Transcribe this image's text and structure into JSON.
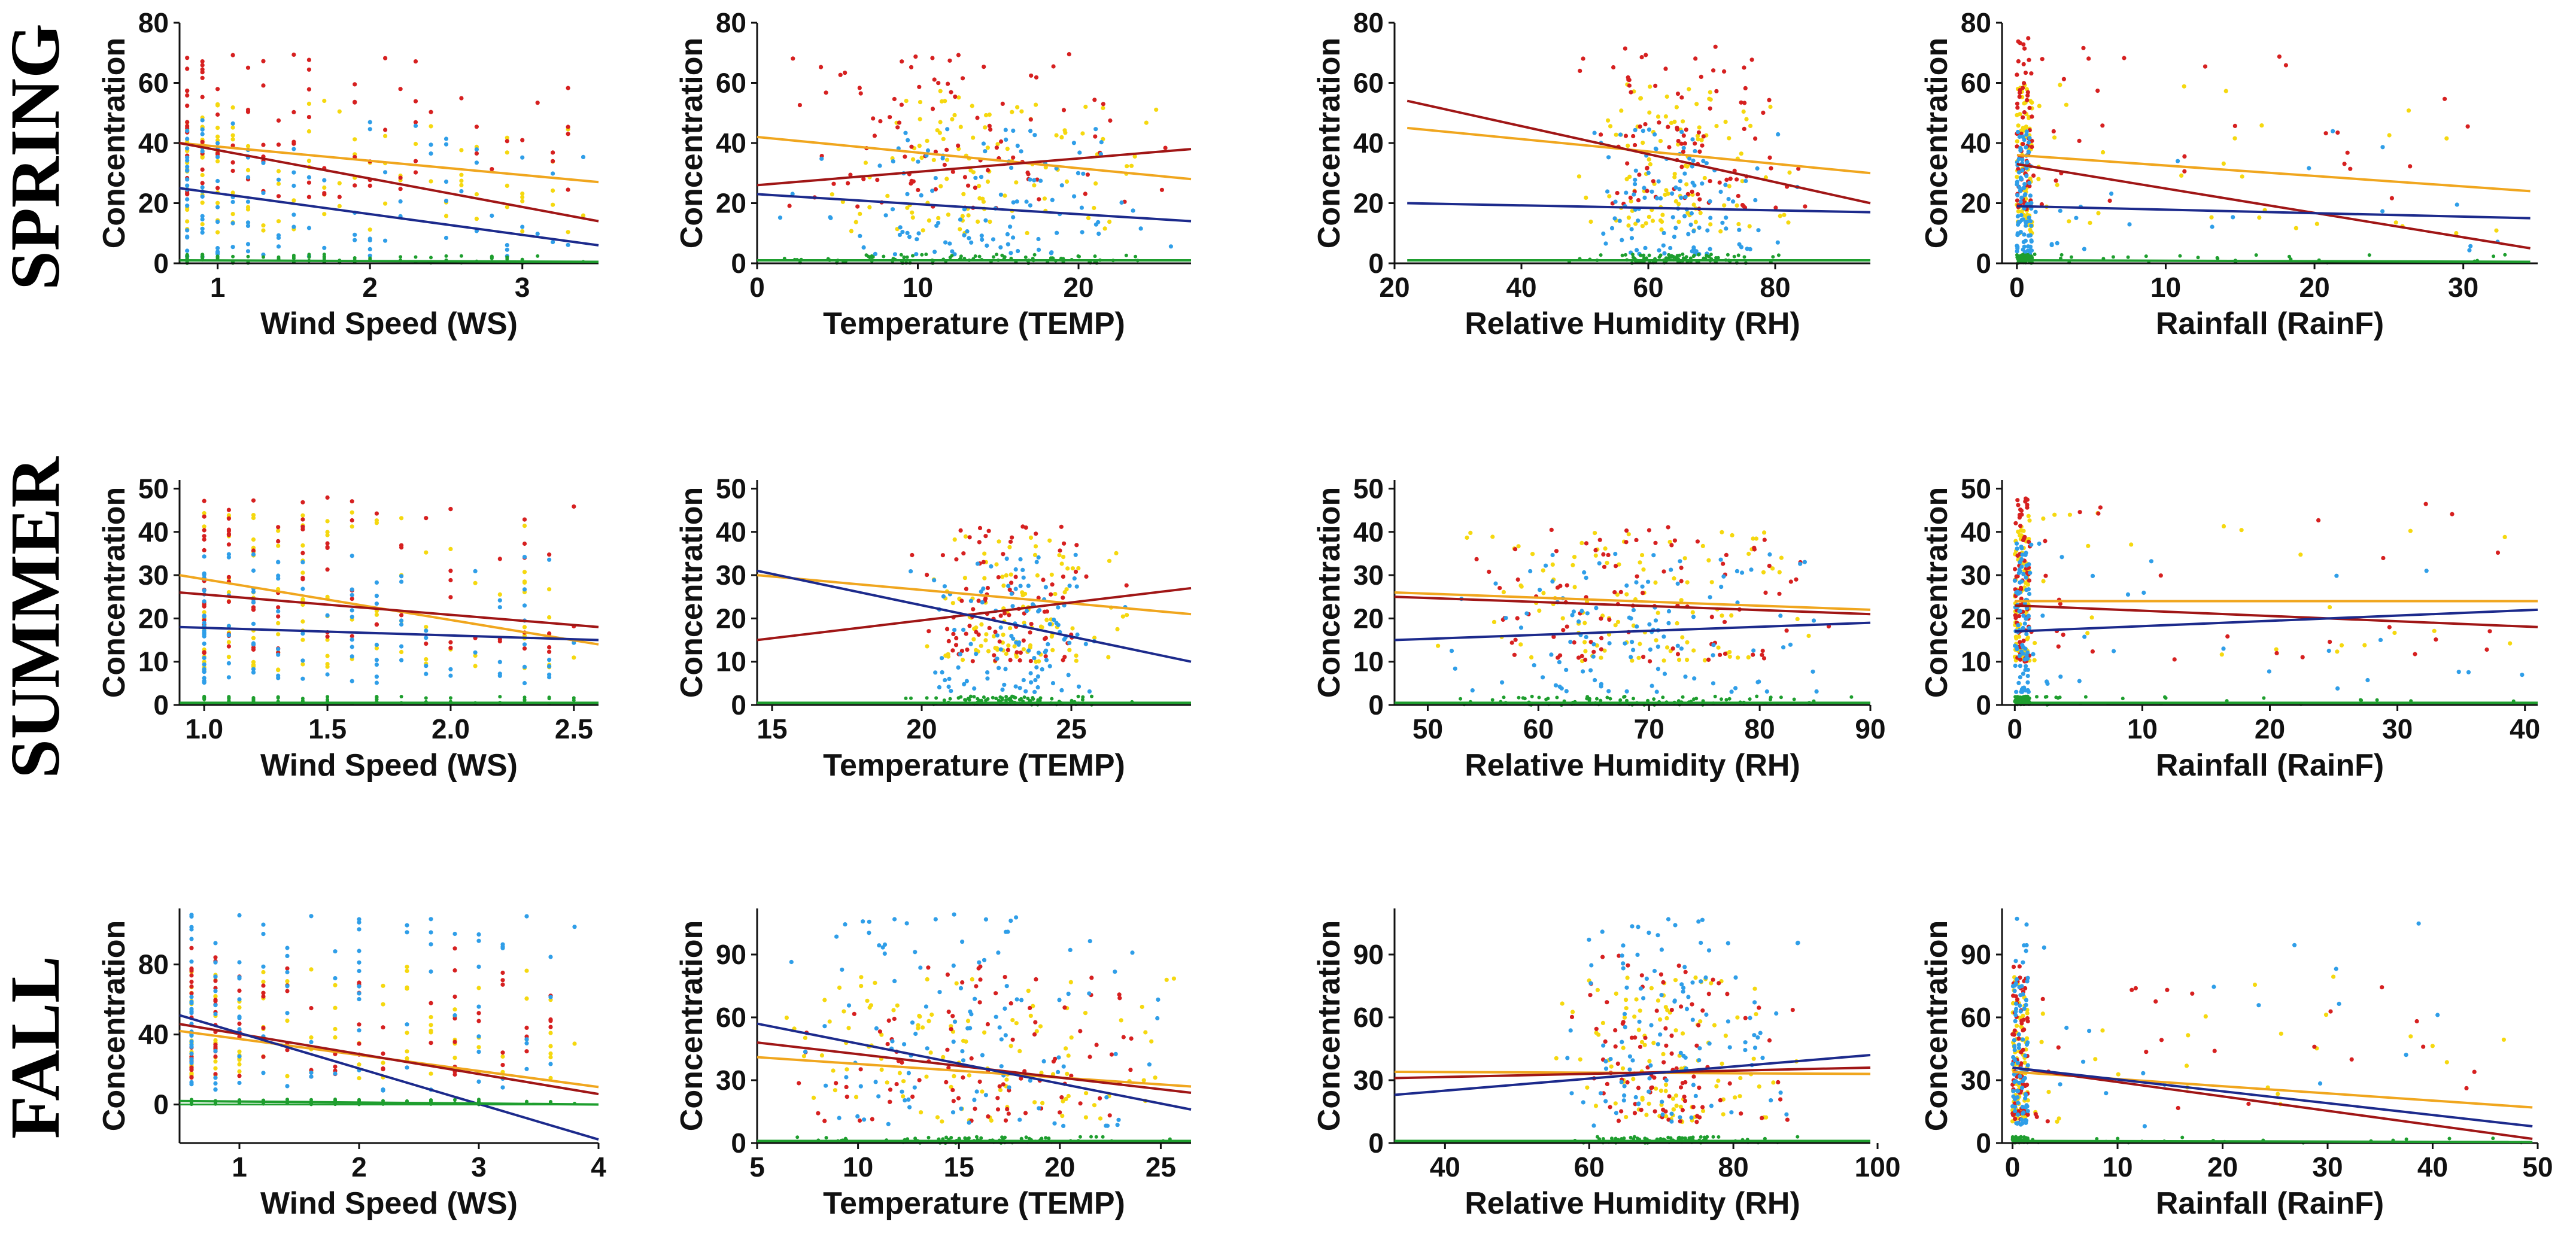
{
  "figure": {
    "colors": {
      "red": "#d62020",
      "orange": "#f0a61e",
      "yellow": "#f5d80f",
      "light_blue": "#2f9ee8",
      "navy": "#1c2a8c",
      "green": "#1e9e2e",
      "dark_red": "#a01616"
    },
    "season_labels": [
      "SPRING",
      "SUMMER",
      "FALL"
    ]
  },
  "chart_data": [
    {
      "type": "scatter",
      "season": "SPRING",
      "title": "",
      "xlabel": "Wind Speed (WS)",
      "ylabel": "Concentration",
      "xlim": [
        0.75,
        3.5
      ],
      "ylim": [
        0,
        80
      ],
      "xticks": [
        1,
        2,
        3
      ],
      "yticks": [
        0,
        20,
        40,
        60,
        80
      ],
      "x_pattern": "discrete",
      "x_range": [
        0.8,
        3.4
      ],
      "skew": -1,
      "spread": [
        [
          10,
          55
        ],
        [
          22,
          70
        ],
        [
          2,
          48
        ],
        [
          0,
          3
        ]
      ],
      "trend_lines": [
        {
          "series": "orange",
          "x": [
            0.75,
            3.5
          ],
          "y": [
            40,
            27
          ]
        },
        {
          "series": "dark_red",
          "x": [
            0.75,
            3.5
          ],
          "y": [
            40,
            14
          ]
        },
        {
          "series": "navy",
          "x": [
            0.75,
            3.5
          ],
          "y": [
            25,
            6
          ]
        },
        {
          "series": "green",
          "x": [
            0.75,
            3.5
          ],
          "y": [
            1,
            0.5
          ]
        }
      ]
    },
    {
      "type": "scatter",
      "season": "SPRING",
      "title": "",
      "xlabel": "Temperature (TEMP)",
      "ylabel": "Concentration",
      "xlim": [
        0,
        27
      ],
      "ylim": [
        0,
        80
      ],
      "xticks": [
        0,
        10,
        20
      ],
      "yticks": [
        0,
        20,
        40,
        60,
        80
      ],
      "x_pattern": "central",
      "x_range": [
        1,
        26
      ],
      "skew": 0,
      "spread": [
        [
          10,
          60
        ],
        [
          18,
          70
        ],
        [
          3,
          45
        ],
        [
          0,
          3
        ]
      ],
      "trend_lines": [
        {
          "series": "orange",
          "x": [
            0,
            27
          ],
          "y": [
            42,
            28
          ]
        },
        {
          "series": "dark_red",
          "x": [
            0,
            27
          ],
          "y": [
            26,
            38
          ]
        },
        {
          "series": "navy",
          "x": [
            0,
            27
          ],
          "y": [
            23,
            14
          ]
        },
        {
          "series": "green",
          "x": [
            0,
            27
          ],
          "y": [
            1,
            1
          ]
        }
      ]
    },
    {
      "type": "scatter",
      "season": "SPRING",
      "title": "",
      "xlabel": "Relative Humidity (RH)",
      "ylabel": "Concentration",
      "xlim": [
        20,
        95
      ],
      "ylim": [
        0,
        80
      ],
      "xticks": [
        20,
        40,
        60,
        80
      ],
      "yticks": [
        0,
        20,
        40,
        60,
        80
      ],
      "x_pattern": "high",
      "x_range": [
        25,
        95
      ],
      "skew": 0,
      "spread": [
        [
          10,
          60
        ],
        [
          18,
          72
        ],
        [
          3,
          45
        ],
        [
          0,
          3
        ]
      ],
      "trend_lines": [
        {
          "series": "orange",
          "x": [
            22,
            95
          ],
          "y": [
            45,
            30
          ]
        },
        {
          "series": "dark_red",
          "x": [
            22,
            95
          ],
          "y": [
            54,
            20
          ]
        },
        {
          "series": "navy",
          "x": [
            22,
            95
          ],
          "y": [
            20,
            17
          ]
        },
        {
          "series": "green",
          "x": [
            22,
            95
          ],
          "y": [
            1,
            1
          ]
        }
      ]
    },
    {
      "type": "scatter",
      "season": "SPRING",
      "title": "",
      "xlabel": "Rainfall (RainF)",
      "ylabel": "Concentration",
      "xlim": [
        -1,
        35
      ],
      "ylim": [
        0,
        80
      ],
      "xticks": [
        0,
        10,
        20,
        30
      ],
      "yticks": [
        0,
        20,
        40,
        60,
        80
      ],
      "x_pattern": "near_zero",
      "x_range": [
        0,
        34
      ],
      "skew": 0,
      "spread": [
        [
          10,
          60
        ],
        [
          18,
          75
        ],
        [
          3,
          45
        ],
        [
          0,
          3
        ]
      ],
      "trend_lines": [
        {
          "series": "orange",
          "x": [
            0,
            34.5
          ],
          "y": [
            36,
            24
          ]
        },
        {
          "series": "dark_red",
          "x": [
            0,
            34.5
          ],
          "y": [
            33,
            5
          ]
        },
        {
          "series": "navy",
          "x": [
            0,
            34.5
          ],
          "y": [
            19,
            15
          ]
        },
        {
          "series": "green",
          "x": [
            0,
            34.5
          ],
          "y": [
            1,
            0.5
          ]
        }
      ]
    },
    {
      "type": "scatter",
      "season": "SUMMER",
      "title": "",
      "xlabel": "Wind Speed (WS)",
      "ylabel": "Concentration",
      "xlim": [
        0.9,
        2.6
      ],
      "ylim": [
        0,
        52
      ],
      "xticks": [
        1.0,
        1.5,
        2.0,
        2.5
      ],
      "xtick_decimals": 1,
      "yticks": [
        0,
        10,
        20,
        30,
        40,
        50
      ],
      "x_pattern": "discrete",
      "x_range": [
        1.0,
        2.5
      ],
      "skew": -1,
      "spread": [
        [
          8,
          45
        ],
        [
          12,
          48
        ],
        [
          5,
          35
        ],
        [
          0,
          2
        ]
      ],
      "trend_lines": [
        {
          "series": "orange",
          "x": [
            0.9,
            2.6
          ],
          "y": [
            30,
            14
          ]
        },
        {
          "series": "dark_red",
          "x": [
            0.9,
            2.6
          ],
          "y": [
            26,
            18
          ]
        },
        {
          "series": "navy",
          "x": [
            0.9,
            2.6
          ],
          "y": [
            18,
            15
          ]
        },
        {
          "series": "green",
          "x": [
            0.9,
            2.6
          ],
          "y": [
            0.5,
            0.5
          ]
        }
      ]
    },
    {
      "type": "scatter",
      "season": "SUMMER",
      "title": "",
      "xlabel": "Temperature (TEMP)",
      "ylabel": "Concentration",
      "xlim": [
        14.5,
        29
      ],
      "ylim": [
        0,
        52
      ],
      "xticks": [
        15,
        20,
        25
      ],
      "yticks": [
        0,
        10,
        20,
        30,
        40,
        50
      ],
      "x_pattern": "high",
      "x_range": [
        15,
        29
      ],
      "skew": 0,
      "spread": [
        [
          10,
          40
        ],
        [
          10,
          42
        ],
        [
          3,
          35
        ],
        [
          0,
          2
        ]
      ],
      "trend_lines": [
        {
          "series": "orange",
          "x": [
            14.5,
            29
          ],
          "y": [
            30,
            21
          ]
        },
        {
          "series": "dark_red",
          "x": [
            14.5,
            29
          ],
          "y": [
            15,
            27
          ]
        },
        {
          "series": "navy",
          "x": [
            14.5,
            29
          ],
          "y": [
            31,
            10
          ]
        },
        {
          "series": "green",
          "x": [
            14.5,
            29
          ],
          "y": [
            0.5,
            0.5
          ]
        }
      ]
    },
    {
      "type": "scatter",
      "season": "SUMMER",
      "title": "",
      "xlabel": "Relative Humidity (RH)",
      "ylabel": "Concentration",
      "xlim": [
        47,
        90
      ],
      "ylim": [
        0,
        52
      ],
      "xticks": [
        50,
        60,
        70,
        80,
        90
      ],
      "yticks": [
        0,
        10,
        20,
        30,
        40,
        50
      ],
      "x_pattern": "central",
      "x_range": [
        50,
        89
      ],
      "skew": 0,
      "spread": [
        [
          10,
          40
        ],
        [
          10,
          42
        ],
        [
          3,
          35
        ],
        [
          0,
          2
        ]
      ],
      "trend_lines": [
        {
          "series": "orange",
          "x": [
            47,
            90
          ],
          "y": [
            26,
            22
          ]
        },
        {
          "series": "dark_red",
          "x": [
            47,
            90
          ],
          "y": [
            25,
            21
          ]
        },
        {
          "series": "navy",
          "x": [
            47,
            90
          ],
          "y": [
            15,
            19
          ]
        },
        {
          "series": "green",
          "x": [
            47,
            90
          ],
          "y": [
            0.5,
            0.5
          ]
        }
      ]
    },
    {
      "type": "scatter",
      "season": "SUMMER",
      "title": "",
      "xlabel": "Rainfall (RainF)",
      "ylabel": "Concentration",
      "xlim": [
        -1,
        41
      ],
      "ylim": [
        0,
        52
      ],
      "xticks": [
        0,
        10,
        20,
        30,
        40
      ],
      "yticks": [
        0,
        10,
        20,
        30,
        40,
        50
      ],
      "x_pattern": "near_zero",
      "x_range": [
        0,
        40
      ],
      "skew": 0,
      "spread": [
        [
          10,
          45
        ],
        [
          10,
          48
        ],
        [
          3,
          38
        ],
        [
          0,
          2
        ]
      ],
      "trend_lines": [
        {
          "series": "orange",
          "x": [
            0,
            41
          ],
          "y": [
            24,
            24
          ]
        },
        {
          "series": "dark_red",
          "x": [
            0,
            41
          ],
          "y": [
            23,
            18
          ]
        },
        {
          "series": "navy",
          "x": [
            0,
            41
          ],
          "y": [
            17,
            22
          ]
        },
        {
          "series": "green",
          "x": [
            0,
            41
          ],
          "y": [
            0.5,
            0.5
          ]
        }
      ]
    },
    {
      "type": "scatter",
      "season": "FALL",
      "title": "",
      "xlabel": "Wind Speed (WS)",
      "ylabel": "Concentration",
      "xlim": [
        0.5,
        4
      ],
      "ylim": [
        -22,
        112
      ],
      "xticks": [
        1,
        2,
        3,
        4
      ],
      "yticks": [
        0,
        40,
        80
      ],
      "x_pattern": "discrete",
      "x_range": [
        0.6,
        3.8
      ],
      "skew": -1,
      "spread": [
        [
          15,
          80
        ],
        [
          15,
          90
        ],
        [
          8,
          110
        ],
        [
          0,
          3
        ]
      ],
      "trend_lines": [
        {
          "series": "orange",
          "x": [
            0.5,
            4
          ],
          "y": [
            42,
            10
          ]
        },
        {
          "series": "dark_red",
          "x": [
            0.5,
            4
          ],
          "y": [
            46,
            6
          ]
        },
        {
          "series": "navy",
          "x": [
            0.5,
            4
          ],
          "y": [
            51,
            -20
          ]
        },
        {
          "series": "green",
          "x": [
            0.5,
            4
          ],
          "y": [
            2,
            0
          ]
        }
      ]
    },
    {
      "type": "scatter",
      "season": "FALL",
      "title": "",
      "xlabel": "Temperature (TEMP)",
      "ylabel": "Concentration",
      "xlim": [
        5,
        26.5
      ],
      "ylim": [
        0,
        112
      ],
      "xticks": [
        5,
        10,
        15,
        20,
        25
      ],
      "yticks": [
        0,
        30,
        60,
        90
      ],
      "x_pattern": "central",
      "x_range": [
        6,
        26
      ],
      "skew": 0,
      "spread": [
        [
          10,
          80
        ],
        [
          10,
          85
        ],
        [
          8,
          110
        ],
        [
          0,
          3
        ]
      ],
      "trend_lines": [
        {
          "series": "orange",
          "x": [
            5,
            26.5
          ],
          "y": [
            41,
            27
          ]
        },
        {
          "series": "dark_red",
          "x": [
            5,
            26.5
          ],
          "y": [
            48,
            24
          ]
        },
        {
          "series": "navy",
          "x": [
            5,
            26.5
          ],
          "y": [
            57,
            16
          ]
        },
        {
          "series": "green",
          "x": [
            5,
            26.5
          ],
          "y": [
            1,
            1
          ]
        }
      ]
    },
    {
      "type": "scatter",
      "season": "FALL",
      "title": "",
      "xlabel": "Relative Humidity (RH)",
      "ylabel": "Concentration",
      "xlim": [
        33,
        99
      ],
      "ylim": [
        0,
        112
      ],
      "xticks": [
        40,
        60,
        80,
        100
      ],
      "yticks": [
        0,
        30,
        60,
        90
      ],
      "x_pattern": "high",
      "x_range": [
        35,
        98
      ],
      "skew": 0,
      "spread": [
        [
          10,
          80
        ],
        [
          10,
          90
        ],
        [
          8,
          110
        ],
        [
          0,
          3
        ]
      ],
      "trend_lines": [
        {
          "series": "orange",
          "x": [
            33,
            99
          ],
          "y": [
            34,
            33
          ]
        },
        {
          "series": "dark_red",
          "x": [
            33,
            99
          ],
          "y": [
            31,
            36
          ]
        },
        {
          "series": "navy",
          "x": [
            33,
            99
          ],
          "y": [
            23,
            42
          ]
        },
        {
          "series": "green",
          "x": [
            33,
            99
          ],
          "y": [
            1,
            1
          ]
        }
      ]
    },
    {
      "type": "scatter",
      "season": "FALL",
      "title": "",
      "xlabel": "Rainfall (RainF)",
      "ylabel": "Concentration",
      "xlim": [
        -1,
        50
      ],
      "ylim": [
        0,
        112
      ],
      "xticks": [
        0,
        10,
        20,
        30,
        40,
        50
      ],
      "yticks": [
        0,
        30,
        60,
        90
      ],
      "x_pattern": "near_zero",
      "x_range": [
        0,
        49
      ],
      "skew": 0,
      "spread": [
        [
          10,
          80
        ],
        [
          10,
          85
        ],
        [
          8,
          110
        ],
        [
          0,
          3
        ]
      ],
      "trend_lines": [
        {
          "series": "orange",
          "x": [
            0,
            49.5
          ],
          "y": [
            34,
            17
          ]
        },
        {
          "series": "dark_red",
          "x": [
            0,
            49.5
          ],
          "y": [
            36,
            2
          ]
        },
        {
          "series": "navy",
          "x": [
            0,
            49.5
          ],
          "y": [
            36,
            8
          ]
        },
        {
          "series": "green",
          "x": [
            0,
            49.5
          ],
          "y": [
            1,
            0.5
          ]
        }
      ]
    }
  ]
}
